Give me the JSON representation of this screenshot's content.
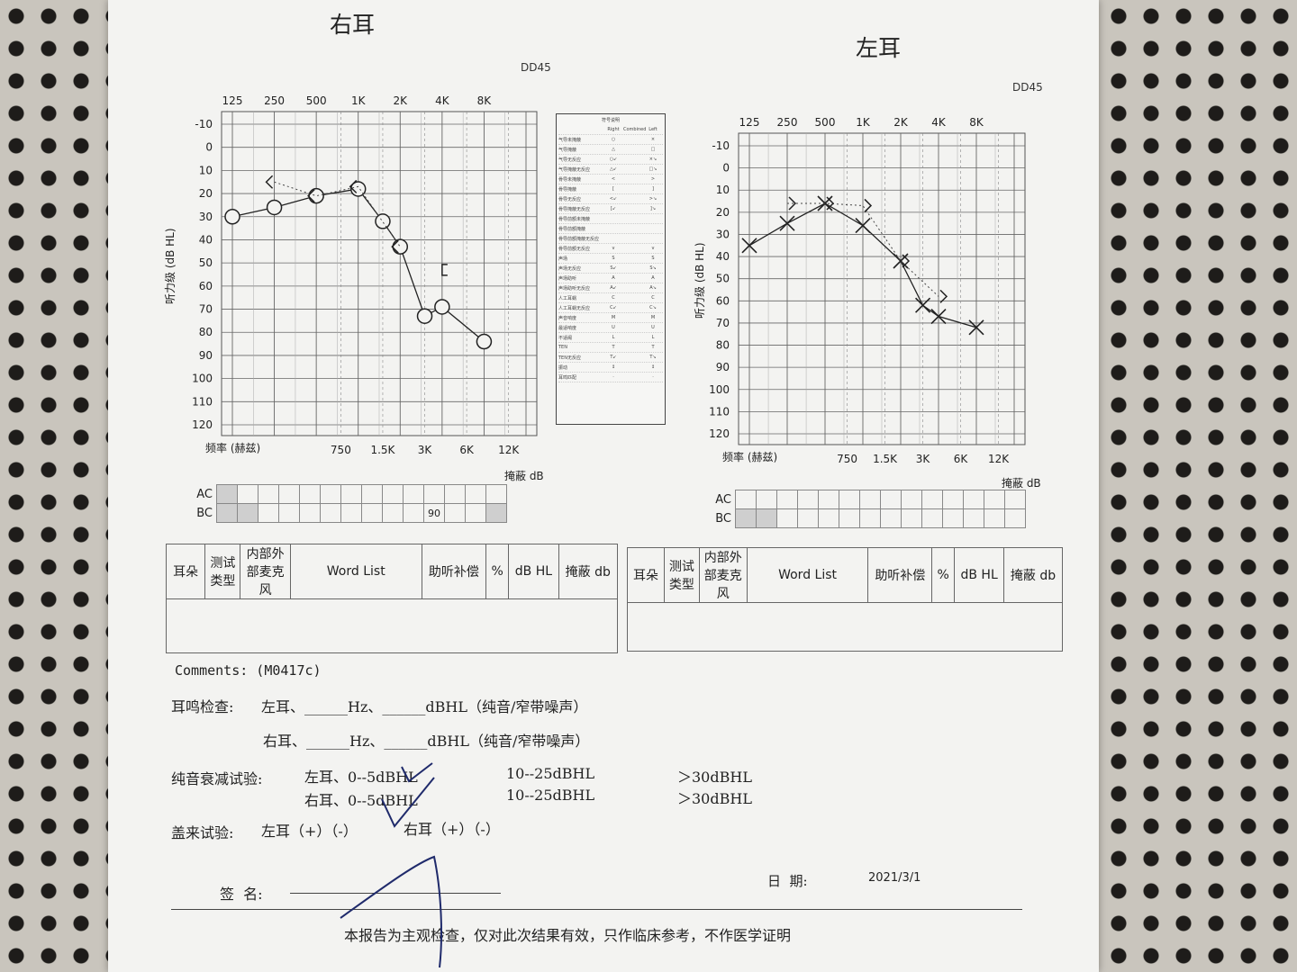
{
  "right": {
    "title": "右耳",
    "model": "DD45",
    "freq_top": [
      "125",
      "250",
      "500",
      "1K",
      "2K",
      "4K",
      "8K"
    ],
    "freq_bottom": [
      "750",
      "1.5K",
      "3K",
      "6K",
      "12K"
    ],
    "freq_axis_label": "频率 (赫兹)",
    "y_ticks": [
      "-10",
      "0",
      "10",
      "20",
      "30",
      "40",
      "50",
      "60",
      "70",
      "80",
      "90",
      "100",
      "110",
      "120"
    ],
    "y_axis_label": "听力级 (dB HL)",
    "mask_label": "掩蔽 dB",
    "ac_label": "AC",
    "bc_label": "BC",
    "bc_mask_value": "90"
  },
  "left": {
    "title": "左耳",
    "model": "DD45",
    "freq_top": [
      "125",
      "250",
      "500",
      "1K",
      "2K",
      "4K",
      "8K"
    ],
    "freq_bottom": [
      "750",
      "1.5K",
      "3K",
      "6K",
      "12K"
    ],
    "freq_axis_label": "频率 (赫兹)",
    "y_ticks": [
      "-10",
      "0",
      "10",
      "20",
      "30",
      "40",
      "50",
      "60",
      "70",
      "80",
      "90",
      "100",
      "110",
      "120"
    ],
    "y_axis_label": "听力级 (dB HL)",
    "mask_label": "掩蔽 dB",
    "ac_label": "AC",
    "bc_label": "BC"
  },
  "chart_data": [
    {
      "type": "line",
      "title": "右耳",
      "xlabel": "频率 (赫兹)",
      "ylabel": "听力级 (dB HL)",
      "x_scale": "log2",
      "ylim": [
        -10,
        120
      ],
      "y_inverted": true,
      "grid": true,
      "series": [
        {
          "marker": "circle",
          "x": [
            125,
            250,
            500,
            1000,
            1500,
            2000,
            3000,
            4000,
            8000
          ],
          "y": [
            30,
            26,
            21,
            18,
            32,
            43,
            73,
            69,
            84
          ]
        },
        {
          "marker": "angle-left",
          "x": [
            250,
            500,
            1000,
            2000
          ],
          "y": [
            15,
            21,
            17,
            43
          ]
        },
        {
          "marker": "bracket-square",
          "x": [
            4000
          ],
          "y": [
            53
          ]
        }
      ]
    },
    {
      "type": "line",
      "title": "左耳",
      "xlabel": "频率 (赫兹)",
      "ylabel": "听力级 (dB HL)",
      "x_scale": "log2",
      "ylim": [
        -10,
        120
      ],
      "y_inverted": true,
      "grid": true,
      "series": [
        {
          "marker": "x",
          "x": [
            125,
            250,
            500,
            1000,
            2000,
            3000,
            4000,
            8000
          ],
          "y": [
            35,
            25,
            16,
            26,
            42,
            62,
            67,
            72
          ]
        },
        {
          "marker": "angle-right",
          "x": [
            250,
            500,
            1000,
            2000,
            4000
          ],
          "y": [
            16,
            16,
            17,
            42,
            58
          ]
        }
      ]
    }
  ],
  "legend": {
    "title": "符号说明",
    "head_cols": [
      "Right",
      "Combined",
      "Left"
    ],
    "rows": [
      [
        "气导未掩蔽",
        "○",
        "×"
      ],
      [
        "气导掩蔽",
        "△",
        "□"
      ],
      [
        "气导无反应",
        "○↙",
        "×↘"
      ],
      [
        "气导掩蔽无反应",
        "△↙",
        "□↘"
      ],
      [
        "骨导未掩蔽",
        "<",
        ">"
      ],
      [
        "骨导掩蔽",
        "[",
        "]"
      ],
      [
        "骨导无反应",
        "<↙",
        ">↘"
      ],
      [
        "骨导掩蔽无反应",
        "[↙",
        "]↘"
      ],
      [
        "骨导前额未掩蔽",
        "",
        ""
      ],
      [
        "骨导前额掩蔽",
        "",
        ""
      ],
      [
        "骨导前额掩蔽无反应",
        "",
        ""
      ],
      [
        "骨导前额无反应",
        "v",
        "v"
      ],
      [
        "声场",
        "S",
        "S"
      ],
      [
        "声场无反应",
        "S↙",
        "S↘"
      ],
      [
        "声场助听",
        "A",
        "A"
      ],
      [
        "声场助听无反应",
        "A↙",
        "A↘"
      ],
      [
        "人工耳蜗",
        "C",
        "C"
      ],
      [
        "人工耳蜗无反应",
        "C↙",
        "C↘"
      ],
      [
        "声音响度",
        "M",
        "M"
      ],
      [
        "最适响度",
        "U",
        "U"
      ],
      [
        "不适阈",
        "L",
        "L"
      ],
      [
        "TEN",
        "T",
        "T"
      ],
      [
        "TEN无反应",
        "T↙",
        "T↘"
      ],
      [
        "振动",
        "↕",
        "↕"
      ],
      [
        "耳鸣匹配",
        "·",
        "·"
      ]
    ]
  },
  "word_table": {
    "headers": [
      "耳朵",
      "测试类型",
      "内部外部麦克风",
      "Word List",
      "助听补偿",
      "%",
      "dB HL",
      "掩蔽 db"
    ]
  },
  "comments": "Comments: (M0417c)",
  "tinnitus": {
    "label": "耳鸣检查:",
    "left_line": "左耳、______Hz、______dBHL（纯音/窄带噪声）",
    "right_line": "右耳、______Hz、______dBHL（纯音/窄带噪声）"
  },
  "tone_decay": {
    "label": "纯音衰减试验:",
    "left": [
      "左耳、0--5dBHL",
      "10--25dBHL",
      "＞30dBHL"
    ],
    "right": [
      "右耳、0--5dBHL",
      "10--25dBHL",
      "＞30dBHL"
    ]
  },
  "gelle": {
    "label": "盖来试验:",
    "left": "左耳（+）（-）",
    "right": "右耳（+）（-）"
  },
  "signature_label": "签  名:",
  "date_label": "日  期:",
  "date_value": "2021/3/1",
  "footer": "本报告为主观检查，仅对此次结果有效，只作临床参考，不作医学证明",
  "colors": {
    "ink": "#222222",
    "grid": "#555555",
    "paper": "#f3f3f1",
    "pen": "#1f2a6b"
  }
}
